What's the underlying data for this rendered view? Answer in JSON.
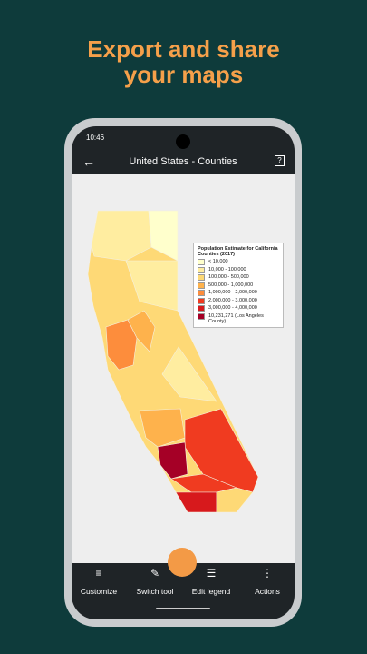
{
  "headline": "Export and share your maps",
  "status_bar": {
    "time": "10:46"
  },
  "app_bar": {
    "title": "United States - Counties",
    "help": "?"
  },
  "legend": {
    "title": "Population Estimate for California Counties (2017)",
    "items": [
      {
        "label": "< 10,000",
        "color": "#ffffcc"
      },
      {
        "label": "10,000 - 100,000",
        "color": "#ffeda0"
      },
      {
        "label": "100,000 - 500,000",
        "color": "#fed976"
      },
      {
        "label": "500,000 - 1,000,000",
        "color": "#feb24c"
      },
      {
        "label": "1,000,000 - 2,000,000",
        "color": "#fd8d3c"
      },
      {
        "label": "2,000,000 - 3,000,000",
        "color": "#f03b20"
      },
      {
        "label": "3,000,000 - 4,000,000",
        "color": "#d7191c"
      },
      {
        "label": "10,231,271 (Los Angeles County)",
        "color": "#a50026"
      }
    ]
  },
  "bottom_nav": [
    "Customize",
    "Switch tool",
    "Edit legend",
    "Actions"
  ]
}
